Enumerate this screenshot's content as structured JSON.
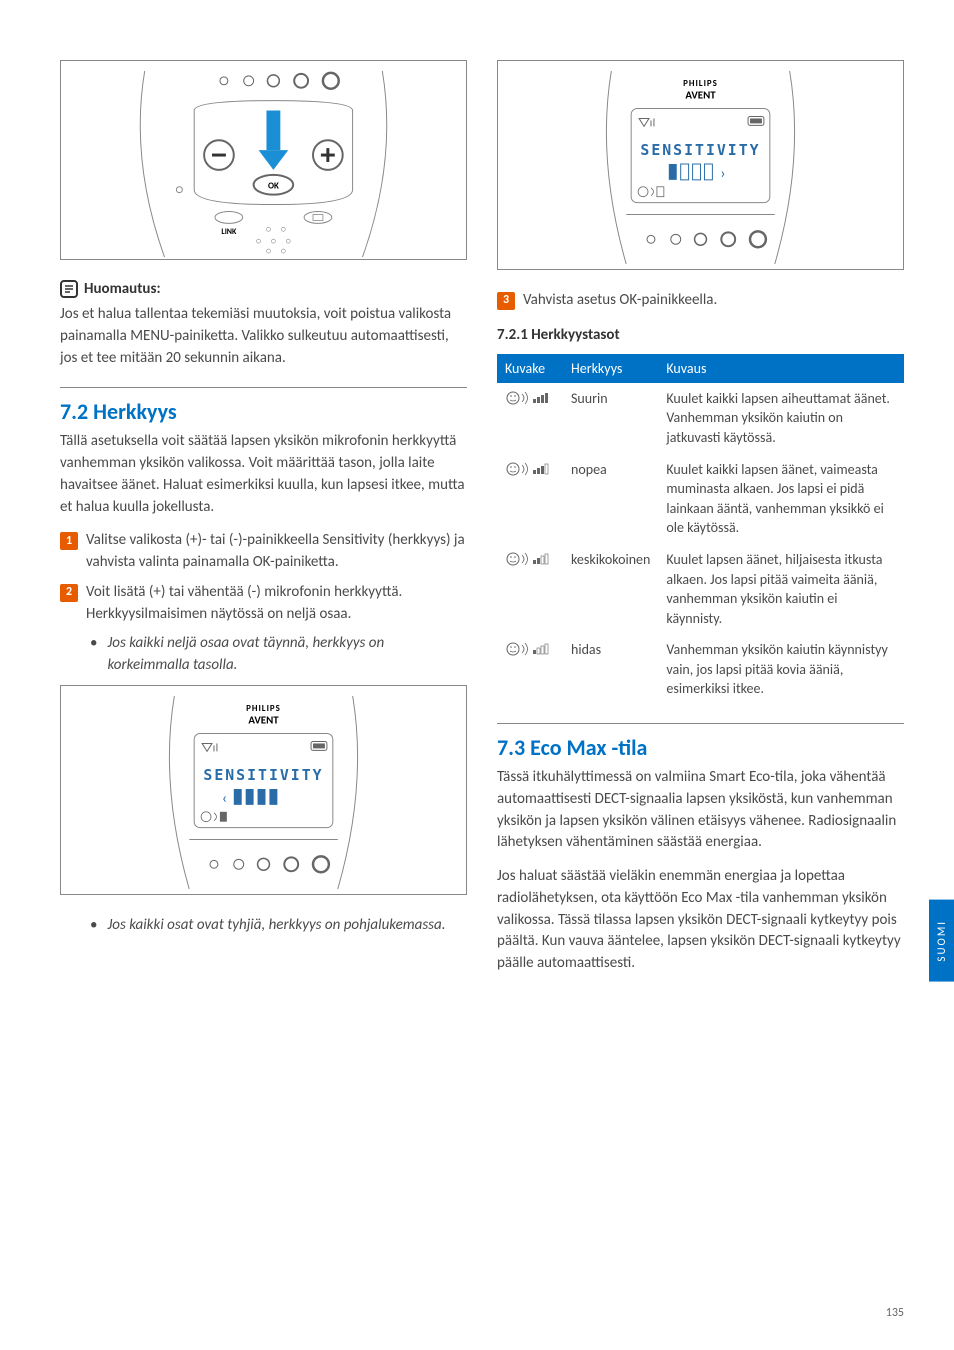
{
  "left": {
    "device1_label_ok": "OK",
    "device1_label_link": "LINK",
    "note_label": "Huomautus:",
    "note_body": "Jos et halua tallentaa tekemiäsi muutoksia, voit poistua valikosta painamalla MENU-painiketta. Valikko sulkeutuu automaattisesti, jos et tee mitään 20 sekunnin aikana.",
    "h2": "7.2 Herkkyys",
    "h2_body": "Tällä asetuksella voit säätää lapsen yksikön mikrofonin herkkyyttä vanhemman yksikön valikossa. Voit määrittää tason, jolla laite havaitsee äänet. Haluat esimerkiksi kuulla, kun lapsesi itkee, mutta et halua kuulla jokellusta.",
    "step1": "Valitse valikosta (+)- tai (-)-painikkeella Sensitivity (herkkyys) ja vahvista valinta painamalla OK-painiketta.",
    "step2": "Voit lisätä (+) tai vähentää (-) mikrofonin herkkyyttä. Herkkyysilmaisimen näytössä on neljä osaa.",
    "bullet1": "Jos kaikki neljä osaa ovat täynnä, herkkyys on korkeimmalla tasolla.",
    "bullet2": "Jos kaikki osat ovat tyhjiä, herkkyys on pohjalukemassa.",
    "screen_brand": "PHILIPS",
    "screen_sub": "AVENT",
    "screen_text": "SENSITIVITY"
  },
  "right": {
    "screen_brand": "PHILIPS",
    "screen_sub": "AVENT",
    "screen_text": "SENSITIVITY",
    "step3": "Vahvista asetus OK-painikkeella.",
    "subheading": "7.2.1 Herkkyystasot",
    "table": {
      "headers": [
        "Kuvake",
        "Herkkyys",
        "Kuvaus"
      ],
      "rows": [
        {
          "level": "Suurin",
          "desc": "Kuulet kaikki lapsen aiheuttamat äänet. Vanhemman yksikön kaiutin on jatkuvasti käytössä.",
          "bars": 4
        },
        {
          "level": "nopea",
          "desc": "Kuulet kaikki lapsen äänet, vaimeasta muminasta alkaen. Jos lapsi ei pidä lainkaan ääntä, vanhemman yksikkö ei ole käytössä.",
          "bars": 3
        },
        {
          "level": "keskikokoinen",
          "desc": "Kuulet lapsen äänet, hiljaisesta itkusta alkaen. Jos lapsi pitää vaimeita ääniä, vanhemman yksikön kaiutin ei käynnisty.",
          "bars": 2
        },
        {
          "level": "hidas",
          "desc": "Vanhemman yksikön kaiutin käynnistyy vain, jos lapsi pitää kovia ääniä, esimerkiksi itkee.",
          "bars": 1
        }
      ]
    },
    "h3": "7.3 Eco Max -tila",
    "h3_body1": "Tässä itkuhälyttimessä on valmiina Smart Eco-tila, joka vähentää automaattisesti DECT-signaalia lapsen yksiköstä, kun vanhemman yksikön ja lapsen yksikön välinen etäisyys vähenee. Radiosignaalin lähetyksen vähentäminen säästää energiaa.",
    "h3_body2": "Jos haluat säästää vieläkin enemmän energiaa ja lopettaa radiolähetyksen, ota käyttöön Eco Max -tila vanhemman yksikön valikossa. Tässä tilassa lapsen yksikön DECT-signaali kytkeytyy pois päältä. Kun vauva ääntelee, lapsen yksikön DECT-signaali kytkeytyy päälle automaattisesti."
  },
  "page_num": "135",
  "side_tab": "SUOMI",
  "colors": {
    "heading": "#0072c6",
    "step_bg": "#e85c00",
    "table_header_bg": "#0072c6",
    "screen_text": "#2a6ca8",
    "arrow_fill": "#1b8fd6"
  }
}
